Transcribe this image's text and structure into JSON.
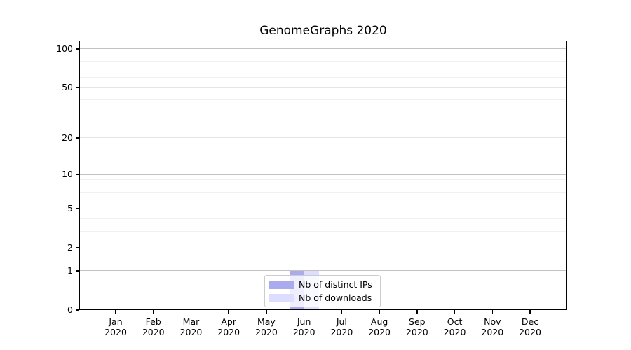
{
  "chart_data": {
    "type": "bar",
    "title": "GenomeGraphs 2020",
    "xlabel": "",
    "ylabel": "",
    "categories": [
      "Jan 2020",
      "Feb 2020",
      "Mar 2020",
      "Apr 2020",
      "May 2020",
      "Jun 2020",
      "Jul 2020",
      "Aug 2020",
      "Sep 2020",
      "Oct 2020",
      "Nov 2020",
      "Dec 2020"
    ],
    "x_tick_month": [
      "Jan",
      "Feb",
      "Mar",
      "Apr",
      "May",
      "Jun",
      "Jul",
      "Aug",
      "Sep",
      "Oct",
      "Nov",
      "Dec"
    ],
    "x_tick_year": "2020",
    "series": [
      {
        "name": "Nb of distinct IPs",
        "color": "#aaaaee",
        "values": [
          0,
          0,
          0,
          0,
          0,
          1,
          0,
          0,
          0,
          0,
          0,
          0
        ]
      },
      {
        "name": "Nb of downloads",
        "color": "#ddddff",
        "values": [
          0,
          0,
          0,
          0,
          0,
          1,
          0,
          0,
          0,
          0,
          0,
          0
        ]
      }
    ],
    "yscale": "log1p",
    "ylim": [
      0,
      116
    ],
    "y_tick_values": [
      0,
      1,
      2,
      5,
      10,
      20,
      50,
      100
    ],
    "y_major_gridlines": [
      1,
      10,
      100
    ],
    "y_mid_gridlines": [
      2,
      5,
      20,
      50
    ],
    "y_minor_gridlines": [
      3,
      4,
      6,
      7,
      8,
      9,
      30,
      40,
      60,
      70,
      80,
      90
    ],
    "grid": true,
    "legend_position": "inside-bottom-center",
    "colors": {
      "grid_major": "#c2c2c2",
      "grid_mid": "#e4e4e4",
      "grid_minor": "#f0f0f0",
      "spine": "#000000",
      "background": "#ffffff",
      "text": "#000000",
      "legend_border": "#cccccc"
    }
  }
}
